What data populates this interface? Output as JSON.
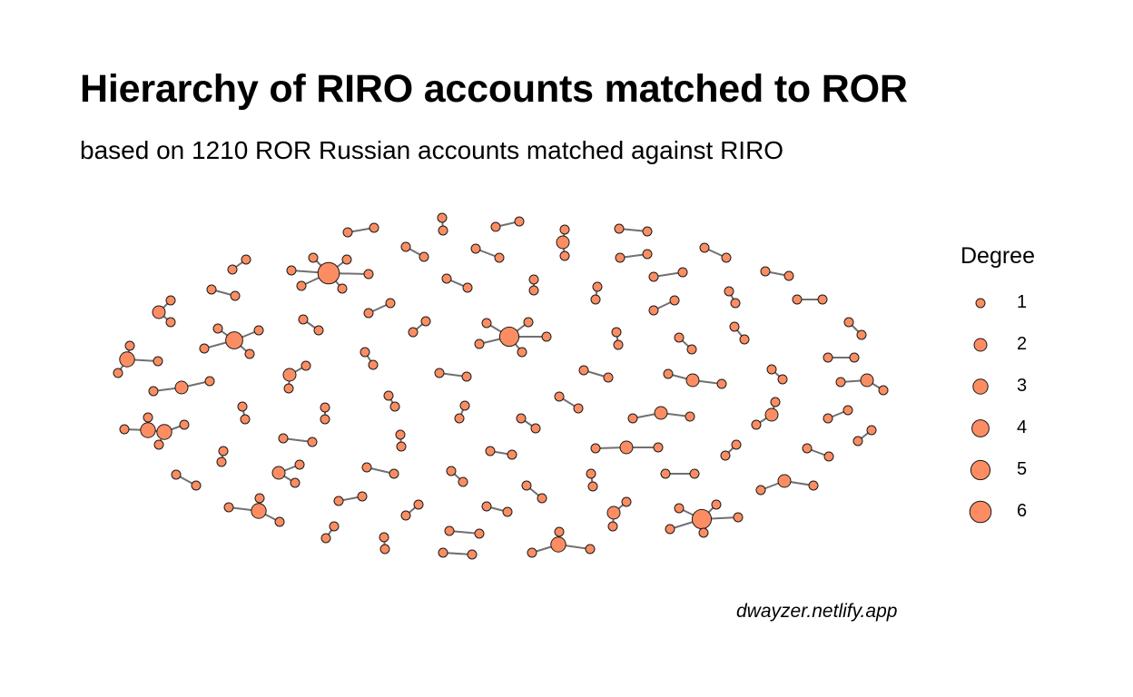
{
  "title": "Hierarchy of RIRO accounts matched to ROR",
  "subtitle": "based on 1210 ROR Russian accounts matched against RIRO",
  "caption": "dwayzer.netlify.app",
  "colors": {
    "node_fill": "#fc8d62",
    "node_stroke": "#1a1a1a",
    "edge": "#707070"
  },
  "legend": {
    "title": "Degree",
    "items": [
      {
        "label": "1",
        "degree": 1
      },
      {
        "label": "2",
        "degree": 2
      },
      {
        "label": "3",
        "degree": 3
      },
      {
        "label": "4",
        "degree": 4
      },
      {
        "label": "5",
        "degree": 5
      },
      {
        "label": "6",
        "degree": 6
      }
    ]
  }
}
